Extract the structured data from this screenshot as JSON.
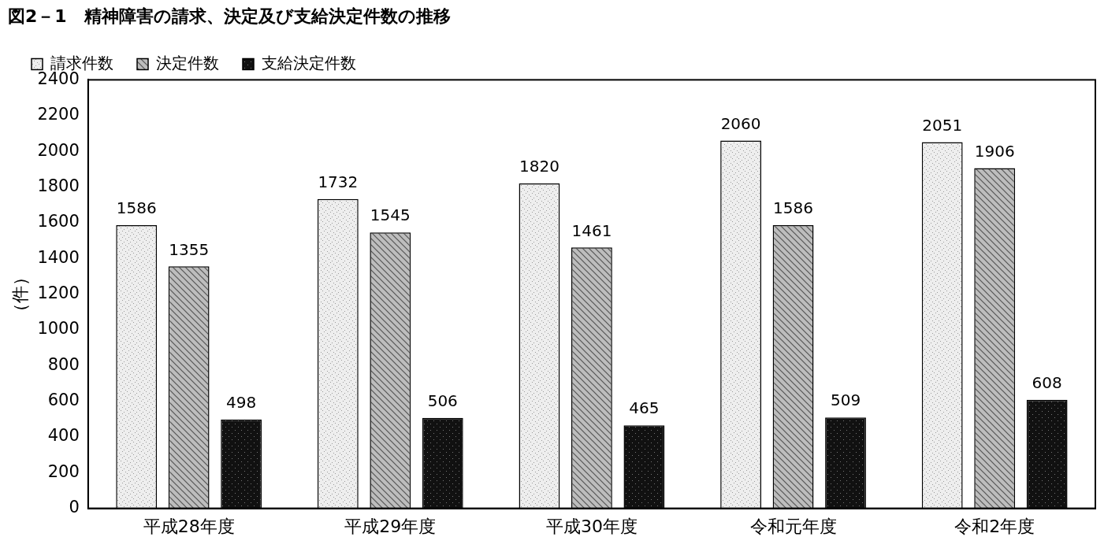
{
  "chart_data": {
    "type": "bar",
    "title": "図2－1　精神障害の請求、決定及び支給決定件数の推移",
    "y_label": "（件）",
    "categories": [
      "平成28年度",
      "平成29年度",
      "平成30年度",
      "令和元年度",
      "令和2年度"
    ],
    "series": [
      {
        "name": "請求件数",
        "color": "#eeeeee",
        "values": [
          1586,
          1732,
          1820,
          2060,
          2051
        ]
      },
      {
        "name": "決定件数",
        "color": "#bdbdbd",
        "values": [
          1355,
          1545,
          1461,
          1586,
          1906
        ]
      },
      {
        "name": "支給決定件数",
        "color": "#111111",
        "values": [
          498,
          506,
          465,
          509,
          608
        ]
      }
    ],
    "ylim": [
      0,
      2400
    ],
    "yticks": [
      0,
      200,
      400,
      600,
      800,
      1000,
      1200,
      1400,
      1600,
      1800,
      2000,
      2200,
      2400
    ],
    "grid": false,
    "legend": "upper left",
    "data_labels": true
  }
}
